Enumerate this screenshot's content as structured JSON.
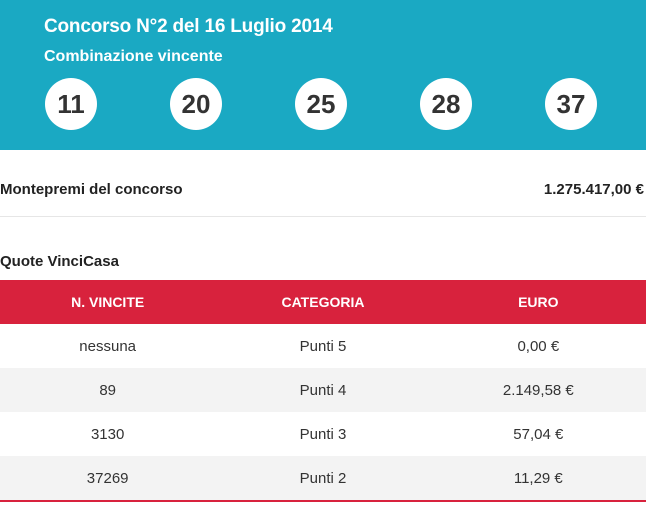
{
  "header": {
    "title": "Concorso N°2 del 16 Luglio 2014",
    "subtitle": "Combinazione vincente",
    "numbers": [
      "11",
      "20",
      "25",
      "28",
      "37"
    ]
  },
  "prize": {
    "label": "Montepremi del concorso",
    "value": "1.275.417,00 €"
  },
  "quotes": {
    "title": "Quote VinciCasa",
    "columns": [
      "N. VINCITE",
      "CATEGORIA",
      "EURO"
    ],
    "rows": [
      {
        "wins": "nessuna",
        "category": "Punti 5",
        "euro": "0,00 €"
      },
      {
        "wins": "89",
        "category": "Punti 4",
        "euro": "2.149,58 €"
      },
      {
        "wins": "3130",
        "category": "Punti 3",
        "euro": "57,04 €"
      },
      {
        "wins": "37269",
        "category": "Punti 2",
        "euro": "11,29 €"
      }
    ]
  },
  "colors": {
    "header_bg": "#1aa9c3",
    "table_header_bg": "#d8223d",
    "row_alt_bg": "#f3f3f3"
  }
}
